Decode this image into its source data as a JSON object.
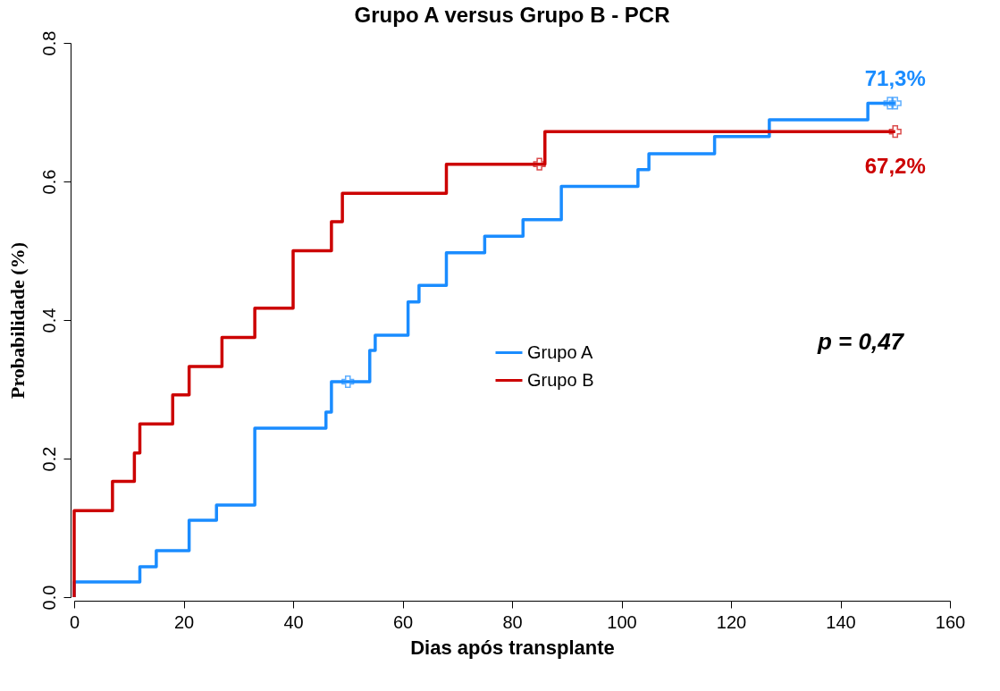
{
  "chart_data": {
    "type": "step",
    "title": "Grupo A versus Grupo B - PCR",
    "xlabel": "Dias após transplante",
    "ylabel": "Probabilidade (%)",
    "xlim": [
      0,
      160
    ],
    "xticks": [
      0,
      20,
      40,
      60,
      80,
      100,
      120,
      140,
      160
    ],
    "ylim": [
      0,
      0.8
    ],
    "yticks": [
      {
        "value": 0,
        "label": "0.0"
      },
      0.2,
      0.4,
      0.6,
      0.8
    ],
    "grid": false,
    "legend": "right",
    "line_style": "solid",
    "series": [
      {
        "name": "Grupo A",
        "color": "#1a8cff",
        "x": [
          0,
          0,
          12,
          15,
          21,
          26,
          33,
          46,
          47,
          54,
          55,
          61,
          63,
          68,
          75,
          82,
          89,
          103,
          105,
          117,
          127,
          145,
          150
        ],
        "values": [
          0,
          0.022,
          0.044,
          0.067,
          0.111,
          0.133,
          0.244,
          0.267,
          0.311,
          0.356,
          0.378,
          0.426,
          0.45,
          0.497,
          0.521,
          0.545,
          0.593,
          0.617,
          0.64,
          0.665,
          0.689,
          0.713,
          0.713
        ]
      },
      {
        "name": "Grupo B",
        "color": "#cc0000",
        "x": [
          0,
          0,
          7,
          11,
          12,
          18,
          21,
          27,
          33,
          40,
          47,
          49,
          68,
          86,
          150
        ],
        "values": [
          0,
          0.125,
          0.167,
          0.208,
          0.25,
          0.292,
          0.333,
          0.375,
          0.417,
          0.5,
          0.542,
          0.583,
          0.625,
          0.672,
          0.672
        ]
      },
      {
        "type": "scatter",
        "marker": "cross",
        "color": "#1a8cff",
        "x": [
          50,
          149,
          150
        ],
        "values": [
          0.311,
          0.713,
          0.713
        ]
      },
      {
        "type": "scatter",
        "marker": "cross",
        "color": "#cc0000",
        "x": [
          85,
          150
        ],
        "values": [
          0.625,
          0.672
        ]
      }
    ],
    "annotations": [
      {
        "text": "71,3%",
        "x": 150,
        "y": 0.713
      },
      {
        "text": "67,2%",
        "x": 150,
        "y": 0.672
      },
      "p = 0,47"
    ]
  }
}
